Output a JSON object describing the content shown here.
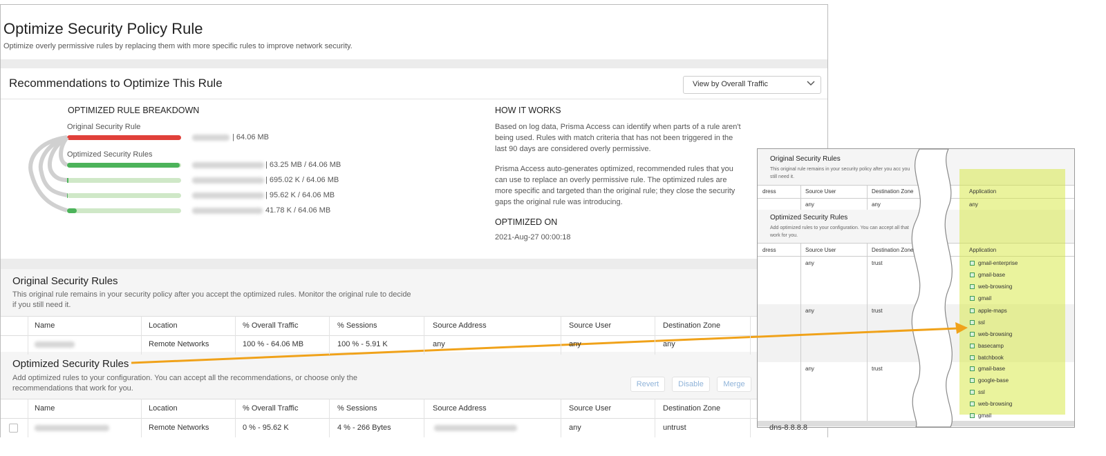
{
  "header": {
    "title": "Optimize Security Policy Rule",
    "subtitle": "Optimize overly permissive rules by replacing them with more specific rules to improve network security."
  },
  "recommendations": {
    "title": "Recommendations to Optimize This Rule",
    "dropdown": "View by Overall Traffic"
  },
  "breakdown": {
    "heading": "OPTIMIZED RULE BREAKDOWN",
    "original_label": "Original Security Rule",
    "original_value": "| 64.06 MB",
    "optimized_label": "Optimized Security Rules",
    "optimized_values": [
      "| 63.25 MB / 64.06 MB",
      "| 695.02 K / 64.06 MB",
      "| 95.62 K / 64.06 MB",
      "41.78 K / 64.06 MB"
    ]
  },
  "how_it_works": {
    "heading": "HOW IT WORKS",
    "paragraphs": [
      "Based on log data, Prisma Access can identify when parts of a rule aren't being used. Rules with match criteria that has not been triggered in the last 90 days are considered overly permissive.",
      "Prisma Access auto-generates optimized, recommended rules that you can use to replace an overly permissive rule. The optimized rules are more specific and targeted than the original rule; they close the security gaps the original rule was introducing."
    ],
    "optimized_on_heading": "OPTIMIZED ON",
    "optimized_on_value": "2021-Aug-27 00:00:18"
  },
  "original_rules": {
    "title": "Original Security Rules",
    "description": "This original rule remains in your security policy after you accept the optimized rules. Monitor the original rule to decide if you still need it.",
    "columns": [
      "Name",
      "Location",
      "% Overall Traffic",
      "% Sessions",
      "Source Address",
      "Source User",
      "Destination Zone"
    ],
    "row": [
      "Remote Networks",
      "100 % - 64.06 MB",
      "100 % - 5.91 K",
      "any",
      "any",
      "any"
    ]
  },
  "optimized_rules": {
    "title": "Optimized Security Rules",
    "description": "Add optimized rules to your configuration. You can accept all the recommendations, or choose only the recommendations that work for you.",
    "buttons": [
      "Revert",
      "Disable",
      "Merge"
    ],
    "columns": [
      "Name",
      "Location",
      "% Overall Traffic",
      "% Sessions",
      "Source Address",
      "Source User",
      "Destination Zone"
    ],
    "row": [
      "Remote Networks",
      "0 % - 95.62 K",
      "4 % - 266 Bytes",
      "any",
      "untrust",
      "dns-8.8.8.8"
    ]
  },
  "inset": {
    "original_title": "Original Security Rules",
    "original_description": "This original rule remains in your security policy after you acc you still need it.",
    "columns": [
      "dress",
      "Source User",
      "Destination Zone",
      "Application"
    ],
    "original_row": [
      "any",
      "any",
      "any"
    ],
    "optimized_title": "Optimized Security Rules",
    "optimized_description": "Add optimized rules to your configuration. You can accept all that work for you.",
    "groups": [
      {
        "user": "any",
        "zone": "trust",
        "apps": [
          "gmail-enterprise",
          "gmail-base",
          "web-browsing",
          "gmail"
        ]
      },
      {
        "user": "any",
        "zone": "trust",
        "apps": [
          "apple-maps",
          "ssl",
          "web-browsing",
          "basecamp",
          "batchbook"
        ]
      },
      {
        "user": "any",
        "zone": "trust",
        "apps": [
          "gmail-base",
          "google-base",
          "ssl",
          "web-browsing",
          "gmail"
        ]
      }
    ]
  }
}
